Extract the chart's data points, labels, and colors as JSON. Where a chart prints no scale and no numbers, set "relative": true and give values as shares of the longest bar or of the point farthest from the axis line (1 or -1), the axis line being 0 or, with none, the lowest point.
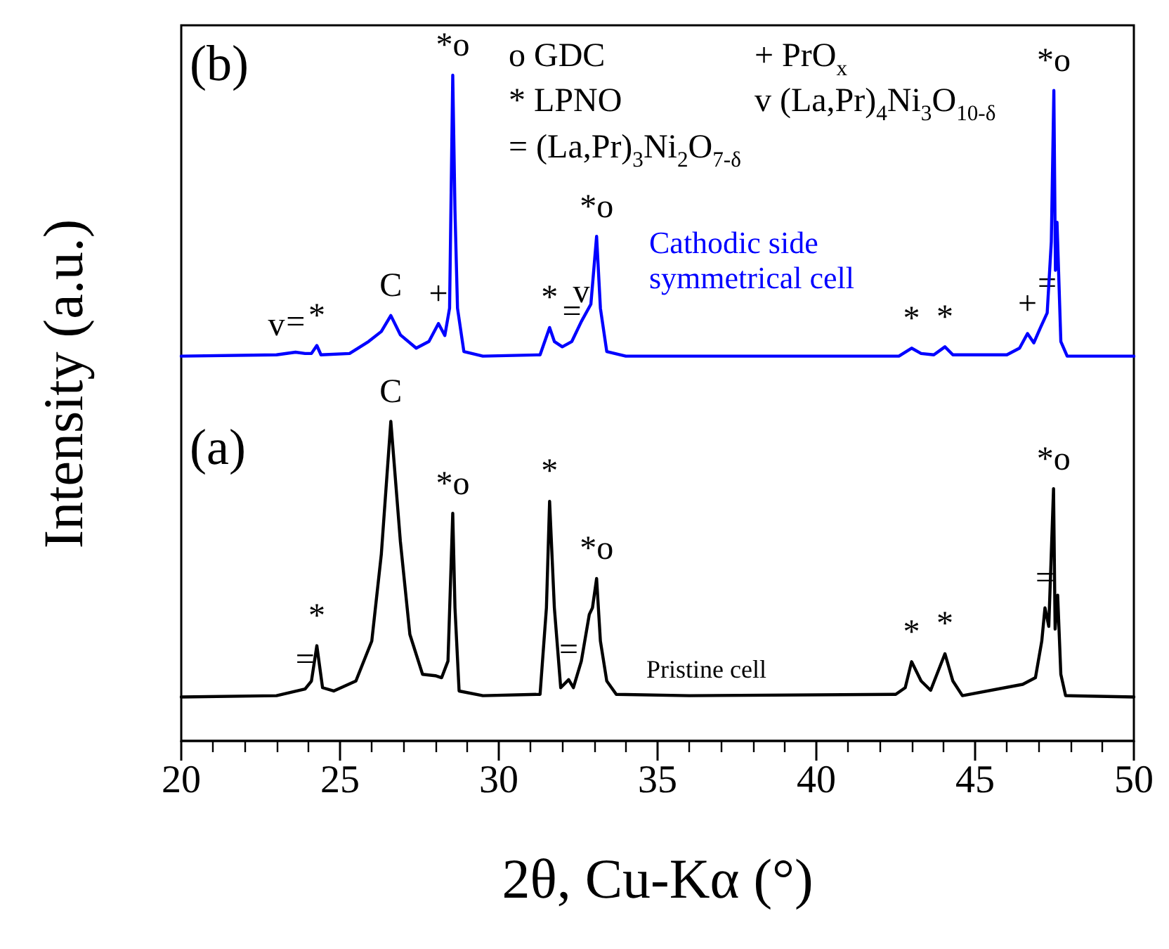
{
  "chart_data": {
    "type": "line",
    "relative": true,
    "xlabel": "2θ, Cu-Kα (°)",
    "ylabel": "Intensity (a.u.)",
    "xlim": [
      20,
      50
    ],
    "xticks": [
      20,
      25,
      30,
      35,
      40,
      45,
      50
    ],
    "tick_labels": "x",
    "grid": false,
    "legend": false,
    "marker": "none",
    "line_style": "solid",
    "series": [
      {
        "name": "Pristine cell",
        "color": "#000000",
        "x": [
          20,
          23.0,
          23.9,
          24.1,
          24.27,
          24.45,
          24.8,
          25.5,
          26.0,
          26.3,
          26.6,
          26.9,
          27.2,
          27.6,
          28.0,
          28.2,
          28.4,
          28.55,
          28.62,
          28.75,
          29.5,
          31.3,
          31.5,
          31.6,
          31.75,
          31.95,
          32.2,
          32.35,
          32.6,
          32.85,
          32.95,
          33.08,
          33.2,
          33.4,
          33.7,
          36,
          42.5,
          42.8,
          43.0,
          43.3,
          43.6,
          44.05,
          44.3,
          44.6,
          46.5,
          46.9,
          47.1,
          47.2,
          47.32,
          47.47,
          47.52,
          47.6,
          47.7,
          47.85,
          50
        ],
        "values": [
          0.066,
          0.068,
          0.078,
          0.09,
          0.143,
          0.08,
          0.075,
          0.09,
          0.15,
          0.28,
          0.48,
          0.3,
          0.16,
          0.1,
          0.098,
          0.095,
          0.12,
          0.342,
          0.2,
          0.075,
          0.068,
          0.07,
          0.2,
          0.36,
          0.2,
          0.08,
          0.092,
          0.08,
          0.12,
          0.19,
          0.2,
          0.244,
          0.15,
          0.09,
          0.07,
          0.068,
          0.07,
          0.08,
          0.119,
          0.09,
          0.076,
          0.131,
          0.09,
          0.068,
          0.085,
          0.095,
          0.15,
          0.2,
          0.172,
          0.379,
          0.168,
          0.219,
          0.1,
          0.068,
          0.066
        ]
      },
      {
        "name": "Cathodic side symmetrical cell",
        "color": "#0000ff",
        "x": [
          20,
          23.0,
          23.6,
          23.9,
          24.1,
          24.27,
          24.4,
          25.3,
          25.9,
          26.3,
          26.6,
          26.9,
          27.4,
          27.8,
          28.1,
          28.3,
          28.45,
          28.55,
          28.62,
          28.7,
          28.9,
          29.5,
          31.3,
          31.6,
          31.75,
          32.0,
          32.3,
          32.6,
          32.9,
          33.08,
          33.2,
          33.4,
          34,
          42.6,
          43.0,
          43.3,
          43.7,
          44.05,
          44.3,
          46.0,
          46.4,
          46.65,
          46.85,
          47.05,
          47.27,
          47.4,
          47.48,
          47.53,
          47.58,
          47.7,
          47.9,
          50
        ],
        "values": [
          0.578,
          0.58,
          0.584,
          0.582,
          0.582,
          0.594,
          0.58,
          0.582,
          0.6,
          0.615,
          0.639,
          0.61,
          0.59,
          0.6,
          0.627,
          0.609,
          0.65,
          1.0,
          0.797,
          0.65,
          0.585,
          0.578,
          0.58,
          0.621,
          0.6,
          0.592,
          0.6,
          0.63,
          0.656,
          0.758,
          0.65,
          0.585,
          0.578,
          0.578,
          0.59,
          0.582,
          0.58,
          0.592,
          0.58,
          0.58,
          0.59,
          0.612,
          0.598,
          0.62,
          0.643,
          0.75,
          0.977,
          0.707,
          0.779,
          0.6,
          0.578,
          0.578
        ]
      }
    ],
    "annotations": [
      "(a)",
      "(b)",
      "o GDC",
      "* LPNO",
      "= (La,Pr)$_{3}$Ni$_{2}$O$_{7-δ}$",
      "+ PrO$_{x}$",
      "v (La,Pr)$_{4}$Ni$_{3}$O$_{10-δ}$",
      {
        "text": "v",
        "x": 23.0,
        "y": 0.58
      },
      {
        "text": "=",
        "x": 23.6,
        "y": 0.584
      },
      {
        "text": "*",
        "x": 24.27,
        "y": 0.594
      },
      {
        "text": "C",
        "x": 26.6,
        "y": 0.639
      },
      {
        "text": "+",
        "x": 28.1,
        "y": 0.627
      },
      {
        "text": "*o",
        "x": 28.55,
        "y": 1.0
      },
      {
        "text": "*",
        "x": 31.6,
        "y": 0.621
      },
      {
        "text": "=",
        "x": 32.3,
        "y": 0.6
      },
      {
        "text": "v",
        "x": 32.6,
        "y": 0.63
      },
      {
        "text": "*o",
        "x": 33.08,
        "y": 0.758
      },
      {
        "text": "*",
        "x": 43.0,
        "y": 0.59
      },
      {
        "text": "*",
        "x": 44.05,
        "y": 0.592
      },
      {
        "text": "+",
        "x": 46.65,
        "y": 0.612
      },
      {
        "text": "=",
        "x": 47.27,
        "y": 0.643
      },
      {
        "text": "*o",
        "x": 47.48,
        "y": 0.977
      },
      {
        "text": "=",
        "x": 23.9,
        "y": 0.078
      },
      {
        "text": "*",
        "x": 24.27,
        "y": 0.143
      },
      {
        "text": "C",
        "x": 26.6,
        "y": 0.48
      },
      {
        "text": "*o",
        "x": 28.55,
        "y": 0.342
      },
      {
        "text": "*",
        "x": 31.6,
        "y": 0.36
      },
      {
        "text": "=",
        "x": 32.2,
        "y": 0.092
      },
      {
        "text": "*o",
        "x": 33.08,
        "y": 0.244
      },
      {
        "text": "*",
        "x": 43.0,
        "y": 0.119
      },
      {
        "text": "*",
        "x": 44.05,
        "y": 0.131
      },
      {
        "text": "=",
        "x": 47.2,
        "y": 0.2
      },
      {
        "text": "*o",
        "x": 47.47,
        "y": 0.379
      }
    ]
  }
}
